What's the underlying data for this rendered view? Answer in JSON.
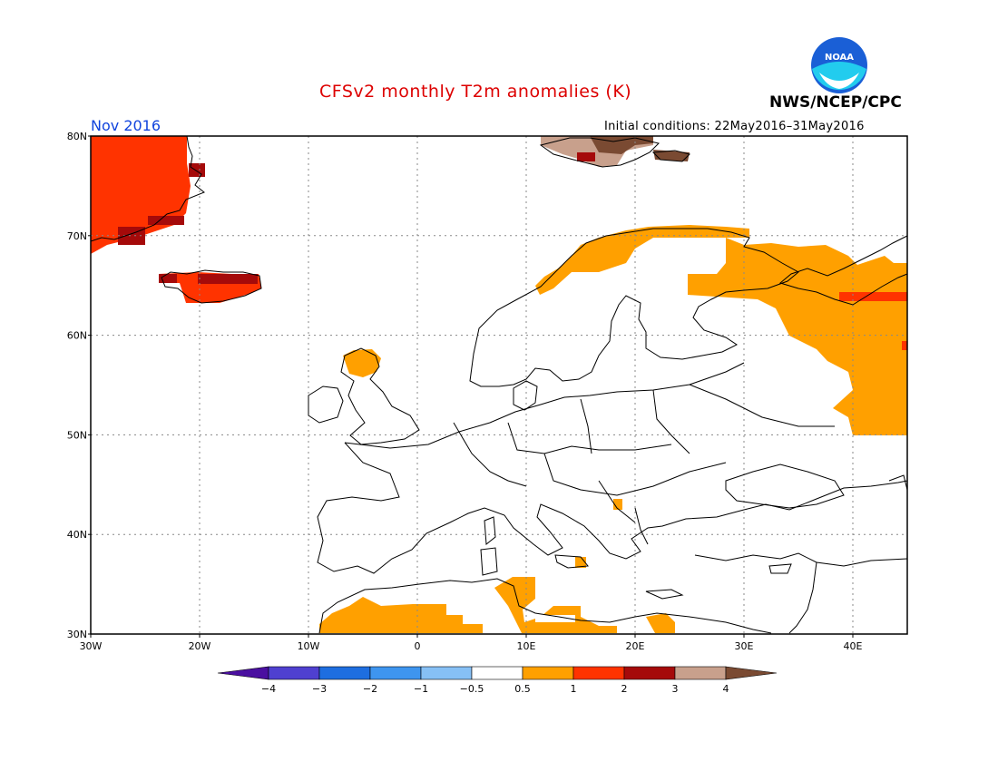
{
  "header": {
    "title": "CFSv2 monthly T2m anomalies (K)",
    "agency": "NWS/NCEP/CPC",
    "month": "Nov 2016",
    "initial_conditions": "Initial conditions: 22May2016–31May2016",
    "logo_text": "NOAA"
  },
  "colors": {
    "title": "#dd0000",
    "month": "#1144dd",
    "land_outline": "#000000",
    "grid": "#888888"
  },
  "map": {
    "lon_range": [
      -30,
      45
    ],
    "lat_range": [
      30,
      80
    ],
    "lat_labels": [
      "80N",
      "70N",
      "60N",
      "50N",
      "40N",
      "30N"
    ],
    "lon_labels": [
      "30W",
      "20W",
      "10W",
      "0",
      "10E",
      "20E",
      "30E",
      "40E"
    ],
    "gridlines": "dotted"
  },
  "legend": {
    "labels": [
      "-4",
      "-3",
      "-2",
      "-1",
      "-0.5",
      "0.5",
      "1",
      "2",
      "3",
      "4"
    ],
    "colors": [
      "#4a0fa0",
      "#4f40d0",
      "#1e6ee0",
      "#3e95ef",
      "#86c0f5",
      "#ffffff",
      "#ffa000",
      "#ff3300",
      "#a50a0a",
      "#c8a08c",
      "#7a4a32"
    ]
  },
  "anomaly_regions": [
    {
      "name": "Greenland east coast",
      "category": "1 to 2"
    },
    {
      "name": "Iceland",
      "category": "1 to 2"
    },
    {
      "name": "Svalbard",
      "category": "3 to 4"
    },
    {
      "name": "Northern Scandinavia coast",
      "category": "0.5 to 1"
    },
    {
      "name": "Northwest Russia",
      "category": "0.5 to 1"
    },
    {
      "name": "Scotland",
      "category": "0.5 to 1"
    },
    {
      "name": "North Africa",
      "category": "0.5 to 1"
    }
  ]
}
